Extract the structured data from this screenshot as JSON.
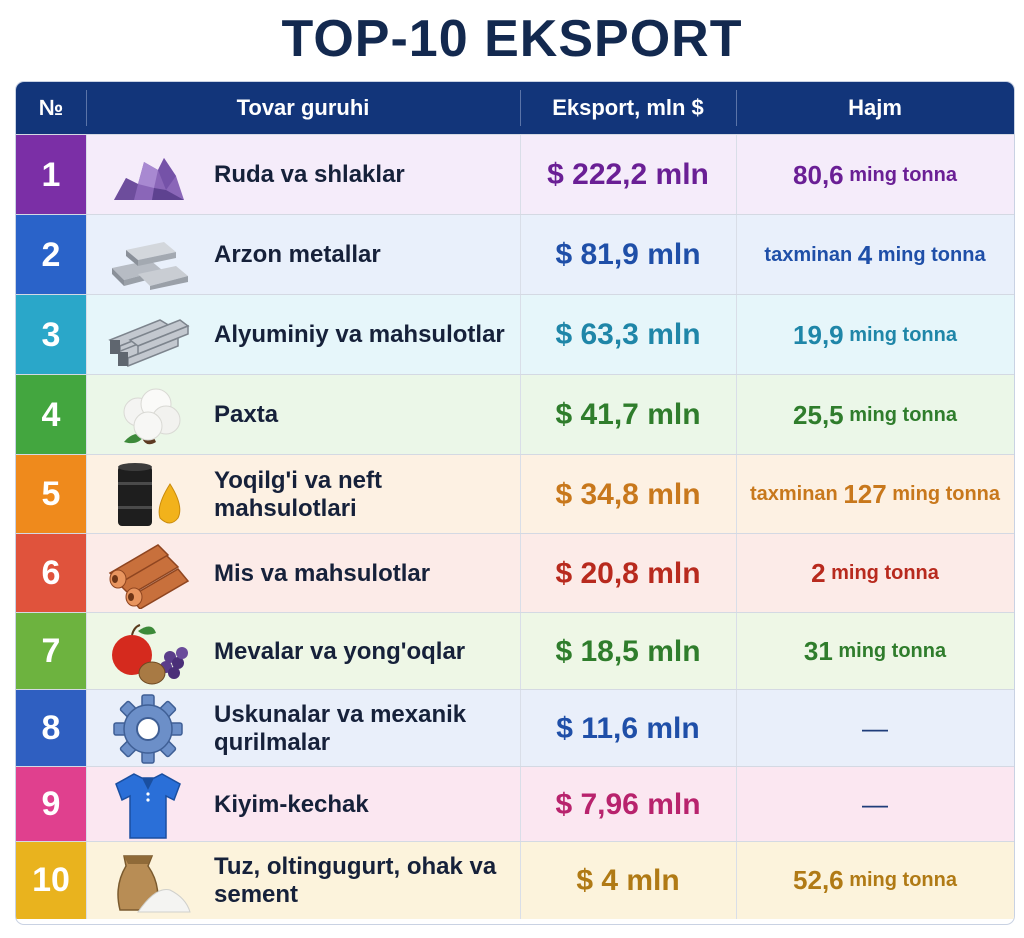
{
  "title": "TOP-10 EKSPORT",
  "headers": {
    "num": "№",
    "group": "Tovar guruhi",
    "export": "Eksport, mln $",
    "volume": "Hajm"
  },
  "rows": [
    {
      "num": "1",
      "name": "Ruda va shlaklar",
      "value": "$ 222,2 mln",
      "vol_pre": "",
      "vol_num": "80,6",
      "vol_unit": " ming tonna",
      "icon": "ore-rocks-icon",
      "accent": "#7b2fa6",
      "bg": "#f5ecfa",
      "color": "#6a1f95"
    },
    {
      "num": "2",
      "name": "Arzon metallar",
      "value": "$ 81,9 mln",
      "vol_pre": "taxminan ",
      "vol_num": "4",
      "vol_unit": " ming tonna",
      "icon": "metal-ingots-icon",
      "accent": "#2a63c9",
      "bg": "#e9f0fb",
      "color": "#1f4fa8"
    },
    {
      "num": "3",
      "name": "Alyuminiy va mahsulotlar",
      "value": "$ 63,3 mln",
      "vol_pre": "",
      "vol_num": "19,9",
      "vol_unit": " ming tonna",
      "icon": "aluminium-profiles-icon",
      "accent": "#2aa7c9",
      "bg": "#e6f6fa",
      "color": "#1f86a8"
    },
    {
      "num": "4",
      "name": "Paxta",
      "value": "$ 41,7 mln",
      "vol_pre": "",
      "vol_num": "25,5",
      "vol_unit": " ming tonna",
      "icon": "cotton-icon",
      "accent": "#43a63f",
      "bg": "#ebf7e8",
      "color": "#2f7d2c"
    },
    {
      "num": "5",
      "name": "Yoqilg'i va neft mahsulotlari",
      "value": "$ 34,8 mln",
      "vol_pre": "taxminan ",
      "vol_num": "127",
      "vol_unit": " ming tonna",
      "icon": "oil-barrel-icon",
      "accent": "#ef8a1c",
      "bg": "#fdf1e3",
      "color": "#c8781c"
    },
    {
      "num": "6",
      "name": "Mis va mahsulotlar",
      "value": "$ 20,8 mln",
      "vol_pre": "",
      "vol_num": "2",
      "vol_unit": " ming tonna",
      "icon": "copper-pipes-icon",
      "accent": "#e0533c",
      "bg": "#fcebe8",
      "color": "#b82a1e"
    },
    {
      "num": "7",
      "name": "Mevalar va yong'oqlar",
      "value": "$ 18,5 mln",
      "vol_pre": "",
      "vol_num": "31",
      "vol_unit": " ming tonna",
      "icon": "fruits-nuts-icon",
      "accent": "#6db33f",
      "bg": "#eef7e6",
      "color": "#2f7d2c"
    },
    {
      "num": "8",
      "name": "Uskunalar va mexanik qurilmalar",
      "value": "$ 11,6 mln",
      "vol_pre": "",
      "vol_num": "—",
      "vol_unit": "",
      "icon": "gear-icon",
      "accent": "#2f5fc1",
      "bg": "#e9effa",
      "color": "#1f4fa8"
    },
    {
      "num": "9",
      "name": "Kiyim-kechak",
      "value": "$ 7,96 mln",
      "vol_pre": "",
      "vol_num": "—",
      "vol_unit": "",
      "icon": "polo-shirt-icon",
      "accent": "#e0408e",
      "bg": "#fbe7f1",
      "color": "#b8236d"
    },
    {
      "num": "10",
      "name": "Tuz, oltingugurt, ohak va sement",
      "value": "$ 4 mln",
      "vol_pre": "",
      "vol_num": "52,6",
      "vol_unit": " ming tonna",
      "icon": "sack-powder-icon",
      "accent": "#e9b31e",
      "bg": "#fcf3dc",
      "color": "#b07a15"
    }
  ]
}
